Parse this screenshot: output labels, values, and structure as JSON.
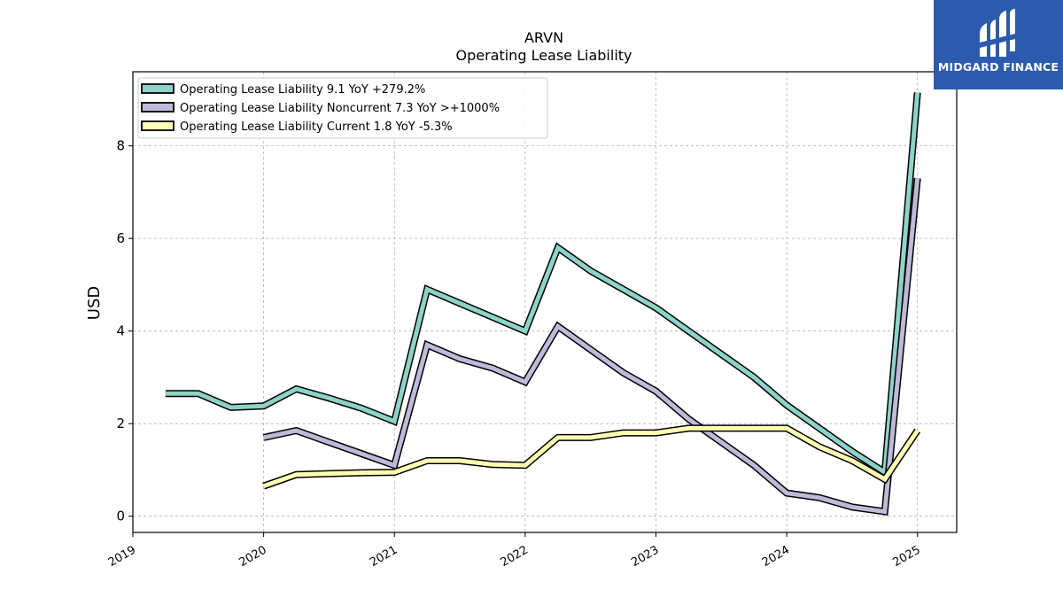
{
  "logo": {
    "text": "MIDGARD FINANCE",
    "bg_color": "#2c5aad"
  },
  "chart_data": {
    "type": "line",
    "title": "ARVN",
    "subtitle": "Operating Lease Liability",
    "ylabel": "USD",
    "xlabel": "",
    "xlim": [
      2019.0,
      2025.3
    ],
    "ylim": [
      -0.35,
      9.6
    ],
    "yticks": [
      0,
      2,
      4,
      6,
      8
    ],
    "xticks": [
      "2019",
      "2020",
      "2021",
      "2022",
      "2023",
      "2024",
      "2025"
    ],
    "grid": true,
    "legend_position": "top-left",
    "series": [
      {
        "name": "Operating Lease Liability  9.1 YoY +279.2%",
        "color": "#8dd3c7",
        "x": [
          2019.25,
          2019.5,
          2019.75,
          2020.0,
          2020.25,
          2020.5,
          2020.75,
          2021.0,
          2021.25,
          2021.5,
          2021.75,
          2022.0,
          2022.25,
          2022.5,
          2022.75,
          2023.0,
          2023.25,
          2023.5,
          2023.75,
          2024.0,
          2024.25,
          2024.5,
          2024.75,
          2025.0
        ],
        "y": [
          2.65,
          2.65,
          2.35,
          2.38,
          2.75,
          2.55,
          2.33,
          2.05,
          4.9,
          4.6,
          4.3,
          4.0,
          5.8,
          5.3,
          4.9,
          4.5,
          4.0,
          3.5,
          3.0,
          2.4,
          1.9,
          1.4,
          0.95,
          9.15
        ]
      },
      {
        "name": "Operating Lease Liability Noncurrent  7.3 YoY >+1000%",
        "color": "#bebada",
        "x": [
          2020.0,
          2020.25,
          2020.5,
          2020.75,
          2021.0,
          2021.25,
          2021.5,
          2021.75,
          2022.0,
          2022.25,
          2022.5,
          2022.75,
          2023.0,
          2023.25,
          2023.5,
          2023.75,
          2024.0,
          2024.25,
          2024.5,
          2024.75,
          2025.0
        ],
        "y": [
          1.7,
          1.85,
          1.6,
          1.35,
          1.1,
          3.7,
          3.4,
          3.2,
          2.9,
          4.1,
          3.6,
          3.1,
          2.7,
          2.1,
          1.6,
          1.1,
          0.5,
          0.4,
          0.2,
          0.1,
          7.3
        ]
      },
      {
        "name": "Operating Lease Liability Current  1.8 YoY -5.3%",
        "color": "#ffffb3",
        "x": [
          2020.0,
          2020.25,
          2020.5,
          2020.75,
          2021.0,
          2021.25,
          2021.5,
          2021.75,
          2022.0,
          2022.25,
          2022.5,
          2022.75,
          2023.0,
          2023.25,
          2023.5,
          2023.75,
          2024.0,
          2024.25,
          2024.5,
          2024.75,
          2025.0
        ],
        "y": [
          0.65,
          0.9,
          0.92,
          0.94,
          0.95,
          1.2,
          1.2,
          1.12,
          1.1,
          1.7,
          1.7,
          1.8,
          1.8,
          1.9,
          1.9,
          1.9,
          1.9,
          1.5,
          1.2,
          0.8,
          1.85
        ]
      }
    ]
  }
}
